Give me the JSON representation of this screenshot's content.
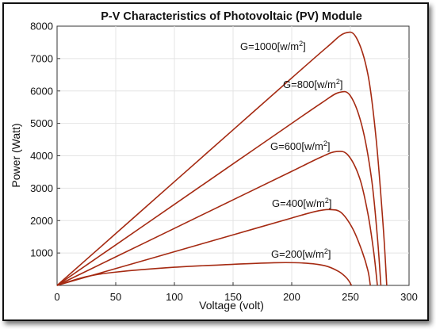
{
  "chart_data": {
    "type": "line",
    "title": "P-V Characteristics of Photovoltaic (PV) Module",
    "xlabel": "Voltage (volt)",
    "ylabel": "Power (Watt)",
    "xlim": [
      0,
      300
    ],
    "ylim": [
      0,
      8000
    ],
    "x_ticks": [
      "0",
      "50",
      "100",
      "150",
      "200",
      "250",
      "300"
    ],
    "y_ticks": [
      "1000",
      "2000",
      "3000",
      "4000",
      "5000",
      "6000",
      "7000",
      "8000"
    ],
    "grid": true,
    "line_color": "#a52a12",
    "series": [
      {
        "name": "G=1000[w/m2]",
        "label_text": "G=1000[w/m",
        "label_sup": "2",
        "label_close": "]",
        "x": [
          0,
          50,
          100,
          150,
          200,
          230,
          245,
          255,
          265,
          272,
          278,
          281
        ],
        "y": [
          0,
          1600,
          3200,
          4800,
          6400,
          7350,
          7780,
          7650,
          6500,
          4500,
          1800,
          0
        ]
      },
      {
        "name": "G=800[w/m2]",
        "label_text": "G=800[w/m",
        "label_sup": "2",
        "label_close": "]",
        "x": [
          0,
          50,
          100,
          150,
          200,
          225,
          240,
          250,
          260,
          268,
          273,
          276
        ],
        "y": [
          0,
          1250,
          2500,
          3750,
          5000,
          5620,
          5950,
          5850,
          4900,
          3300,
          1500,
          0
        ]
      },
      {
        "name": "G=600[w/m2]",
        "label_text": "G=600[w/m",
        "label_sup": "2",
        "label_close": "]",
        "x": [
          0,
          50,
          100,
          150,
          200,
          225,
          238,
          248,
          258,
          265,
          270,
          273
        ],
        "y": [
          0,
          880,
          1760,
          2640,
          3520,
          3960,
          4130,
          4020,
          3300,
          2200,
          1000,
          0
        ]
      },
      {
        "name": "G=400[w/m2]",
        "label_text": "G=400[w/m",
        "label_sup": "2",
        "label_close": "]",
        "x": [
          0,
          50,
          100,
          150,
          200,
          220,
          232,
          242,
          252,
          260,
          265,
          267
        ],
        "y": [
          0,
          520,
          1040,
          1560,
          2080,
          2280,
          2340,
          2250,
          1750,
          1050,
          450,
          0
        ]
      },
      {
        "name": "G=200[w/m2]",
        "label_text": "G=200[w/m",
        "label_sup": "2",
        "label_close": "]",
        "x": [
          0,
          25,
          50,
          100,
          150,
          185,
          210,
          228,
          240,
          247,
          251
        ],
        "y": [
          0,
          270,
          410,
          560,
          650,
          700,
          690,
          610,
          430,
          220,
          0
        ]
      }
    ]
  }
}
